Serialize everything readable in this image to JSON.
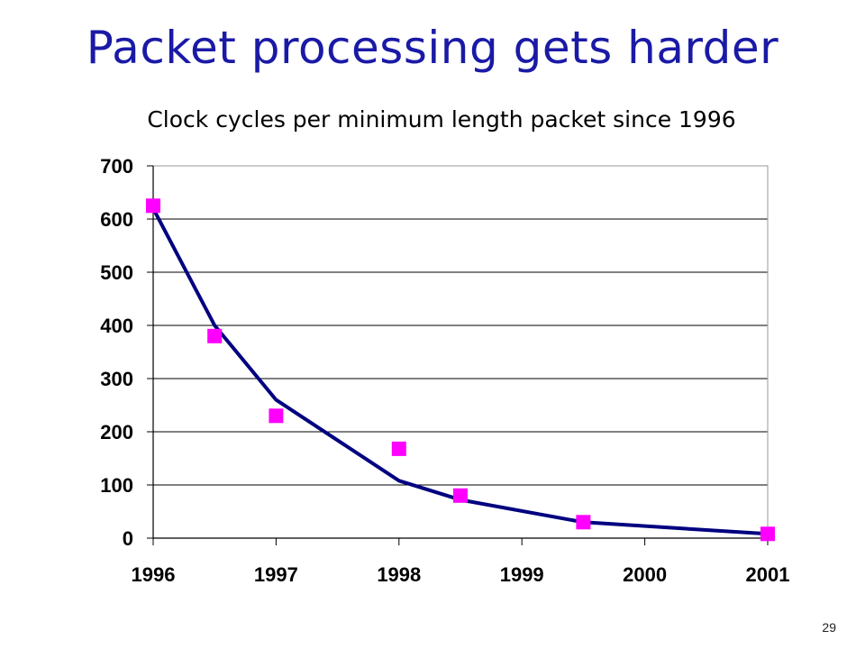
{
  "slide": {
    "title": "Packet processing gets harder",
    "page_number": "29"
  },
  "chart_data": {
    "type": "line",
    "title": "Clock cycles per minimum length packet since 1996",
    "xlabel": "",
    "ylabel": "",
    "xlim": [
      1996,
      2001
    ],
    "ylim": [
      0,
      700
    ],
    "x_ticks": [
      1996,
      1997,
      1998,
      1999,
      2000,
      2001
    ],
    "y_ticks": [
      0,
      100,
      200,
      300,
      400,
      500,
      600,
      700
    ],
    "grid": "horizontal",
    "legend": "none",
    "series": [
      {
        "kind": "line",
        "color": "#000080",
        "x": [
          1996,
          1996.5,
          1997,
          1998,
          1998.5,
          1999.5,
          2001
        ],
        "y": [
          620,
          400,
          260,
          108,
          72,
          30,
          8
        ]
      },
      {
        "kind": "scatter",
        "marker": "square",
        "color": "#ff00ff",
        "x": [
          1996,
          1996.5,
          1997,
          1998,
          1998.5,
          1999.5,
          2001
        ],
        "y": [
          625,
          380,
          230,
          168,
          80,
          30,
          8
        ]
      }
    ]
  }
}
